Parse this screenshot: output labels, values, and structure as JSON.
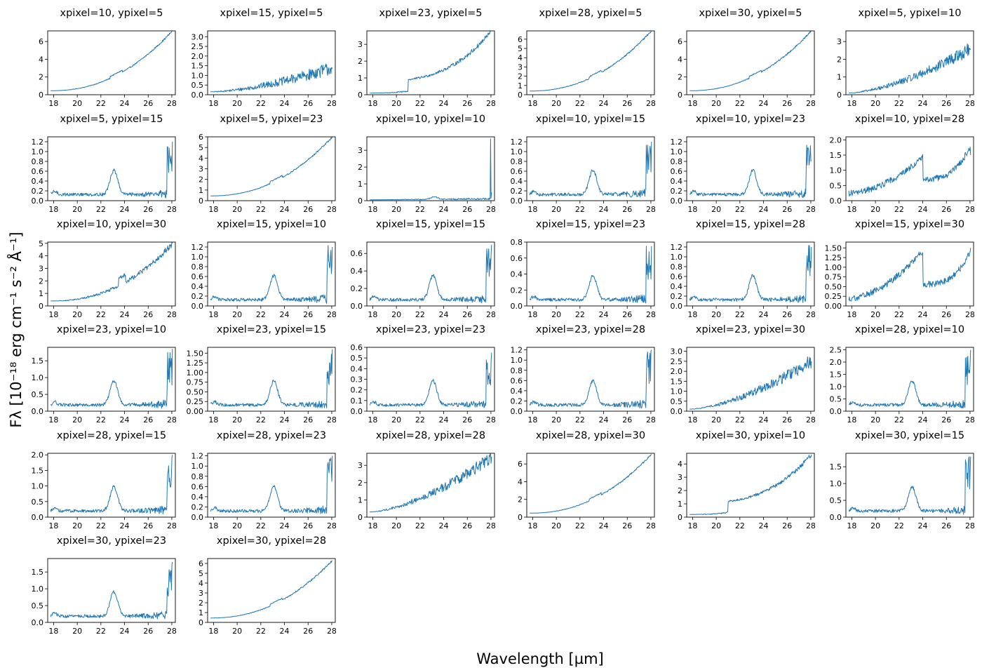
{
  "figure": {
    "xlabel": "Wavelength [µm]",
    "ylabel": "Fλ [10⁻¹⁸ erg cm⁻¹ s⁻² Å⁻¹]",
    "line_color": "#1f77b4"
  },
  "chart_data": [
    {
      "type": "line",
      "title": "xpixel=10, ypixel=5",
      "xlim": [
        17.5,
        28.3
      ],
      "ylim": [
        0,
        7.2
      ],
      "yticks": [
        0,
        2,
        4,
        6
      ],
      "ytick_labels": [
        "0",
        "2",
        "4",
        "6"
      ],
      "xticks": [
        18,
        20,
        22,
        24,
        26,
        28
      ],
      "shape": "rising",
      "end_value": 7.2,
      "start_value": 0.45
    },
    {
      "type": "line",
      "title": "xpixel=15, ypixel=5",
      "xlim": [
        17.5,
        28.3
      ],
      "ylim": [
        0,
        3.3
      ],
      "yticks": [
        0,
        0.5,
        1,
        1.5,
        2,
        2.5,
        3
      ],
      "ytick_labels": [
        "0.0",
        "0.5",
        "1.0",
        "1.5",
        "2.0",
        "2.5",
        "3.0"
      ],
      "xticks": [
        18,
        20,
        22,
        24,
        26,
        28
      ],
      "shape": "noisy-rising",
      "end_value": 1.4,
      "start_value": 0.15
    },
    {
      "type": "line",
      "title": "xpixel=23, ypixel=5",
      "xlim": [
        17.5,
        28.3
      ],
      "ylim": [
        0,
        3.8
      ],
      "yticks": [
        0,
        1,
        2,
        3
      ],
      "ytick_labels": [
        "0",
        "1",
        "2",
        "3"
      ],
      "xticks": [
        18,
        20,
        22,
        24,
        26,
        28
      ],
      "shape": "step-rising",
      "end_value": 3.8,
      "start_value": 0.1
    },
    {
      "type": "line",
      "title": "xpixel=28, ypixel=5",
      "xlim": [
        17.5,
        28.3
      ],
      "ylim": [
        0,
        6.9
      ],
      "yticks": [
        0,
        1,
        2,
        3,
        4,
        5,
        6
      ],
      "ytick_labels": [
        "0",
        "1",
        "2",
        "3",
        "4",
        "5",
        "6"
      ],
      "xticks": [
        18,
        20,
        22,
        24,
        26,
        28
      ],
      "shape": "rising",
      "end_value": 6.9,
      "start_value": 0.4
    },
    {
      "type": "line",
      "title": "xpixel=30, ypixel=5",
      "xlim": [
        17.5,
        28.3
      ],
      "ylim": [
        0,
        7.2
      ],
      "yticks": [
        0,
        2,
        4,
        6
      ],
      "ytick_labels": [
        "0",
        "2",
        "4",
        "6"
      ],
      "xticks": [
        18,
        20,
        22,
        24,
        26,
        28
      ],
      "shape": "rising",
      "end_value": 7.2,
      "start_value": 0.45
    },
    {
      "type": "line",
      "title": "xpixel=5, ypixel=10",
      "xlim": [
        17.5,
        28.3
      ],
      "ylim": [
        0,
        3.6
      ],
      "yticks": [
        0,
        1,
        2,
        3
      ],
      "ytick_labels": [
        "0",
        "1",
        "2",
        "3"
      ],
      "xticks": [
        18,
        20,
        22,
        24,
        26,
        28
      ],
      "shape": "noisy-rising",
      "end_value": 2.6,
      "start_value": 0.1
    },
    {
      "type": "line",
      "title": "xpixel=5, ypixel=15",
      "xlim": [
        17.5,
        28.3
      ],
      "ylim": [
        0,
        1.3
      ],
      "yticks": [
        0,
        0.2,
        0.4,
        0.6,
        0.8,
        1,
        1.2
      ],
      "ytick_labels": [
        "0.0",
        "0.2",
        "0.4",
        "0.6",
        "0.8",
        "1.0",
        "1.2"
      ],
      "xticks": [
        18,
        20,
        22,
        24,
        26,
        28
      ],
      "shape": "bump-noisy",
      "end_value": 1.2,
      "start_value": 0.1
    },
    {
      "type": "line",
      "title": "xpixel=5, ypixel=23",
      "xlim": [
        17.5,
        28.3
      ],
      "ylim": [
        0,
        6
      ],
      "yticks": [
        0,
        1,
        2,
        3,
        4,
        5,
        6
      ],
      "ytick_labels": [
        "0",
        "1",
        "2",
        "3",
        "4",
        "5",
        "6"
      ],
      "xticks": [
        18,
        20,
        22,
        24,
        26,
        28
      ],
      "shape": "rising",
      "end_value": 6,
      "start_value": 0.45
    },
    {
      "type": "line",
      "title": "xpixel=10, ypixel=10",
      "xlim": [
        17.5,
        28.3
      ],
      "ylim": [
        0,
        3.8
      ],
      "yticks": [
        0,
        1,
        2,
        3
      ],
      "ytick_labels": [
        "0",
        "1",
        "2",
        "3"
      ],
      "xticks": [
        18,
        20,
        22,
        24,
        26,
        28
      ],
      "shape": "flat-spike",
      "end_value": 0.5,
      "start_value": 0.05
    },
    {
      "type": "line",
      "title": "xpixel=10, ypixel=15",
      "xlim": [
        17.5,
        28.3
      ],
      "ylim": [
        0,
        1.3
      ],
      "yticks": [
        0,
        0.2,
        0.4,
        0.6,
        0.8,
        1,
        1.2
      ],
      "ytick_labels": [
        "0.0",
        "0.2",
        "0.4",
        "0.6",
        "0.8",
        "1.0",
        "1.2"
      ],
      "xticks": [
        18,
        20,
        22,
        24,
        26,
        28
      ],
      "shape": "bump-noisy",
      "end_value": 1.2,
      "start_value": 0.1
    },
    {
      "type": "line",
      "title": "xpixel=10, ypixel=23",
      "xlim": [
        17.5,
        28.3
      ],
      "ylim": [
        0,
        1.3
      ],
      "yticks": [
        0,
        0.2,
        0.4,
        0.6,
        0.8,
        1,
        1.2
      ],
      "ytick_labels": [
        "0.0",
        "0.2",
        "0.4",
        "0.6",
        "0.8",
        "1.0",
        "1.2"
      ],
      "xticks": [
        18,
        20,
        22,
        24,
        26,
        28
      ],
      "shape": "bump-noisy",
      "end_value": 0.8,
      "start_value": 0.1
    },
    {
      "type": "line",
      "title": "xpixel=10, ypixel=28",
      "xlim": [
        17.5,
        28.3
      ],
      "ylim": [
        0,
        2.1
      ],
      "yticks": [
        0,
        0.5,
        1,
        1.5,
        2
      ],
      "ytick_labels": [
        "0.0",
        "0.5",
        "1.0",
        "1.5",
        "2.0"
      ],
      "xticks": [
        18,
        20,
        22,
        24,
        26,
        28
      ],
      "shape": "hump-drop",
      "end_value": 1.5,
      "start_value": 0.25
    },
    {
      "type": "line",
      "title": "xpixel=10, ypixel=30",
      "xlim": [
        17.5,
        28.3
      ],
      "ylim": [
        0,
        5.1
      ],
      "yticks": [
        0,
        1,
        2,
        3,
        4,
        5
      ],
      "ytick_labels": [
        "0",
        "1",
        "2",
        "3",
        "4",
        "5"
      ],
      "xticks": [
        18,
        20,
        22,
        24,
        26,
        28
      ],
      "shape": "rising-drop",
      "end_value": 5,
      "start_value": 0.4
    },
    {
      "type": "line",
      "title": "xpixel=15, ypixel=10",
      "xlim": [
        17.5,
        28.3
      ],
      "ylim": [
        0,
        1.3
      ],
      "yticks": [
        0,
        0.2,
        0.4,
        0.6,
        0.8,
        1,
        1.2
      ],
      "ytick_labels": [
        "0.0",
        "0.2",
        "0.4",
        "0.6",
        "0.8",
        "1.0",
        "1.2"
      ],
      "xticks": [
        18,
        20,
        22,
        24,
        26,
        28
      ],
      "shape": "bump-noisy",
      "end_value": 1.2,
      "start_value": 0.1
    },
    {
      "type": "line",
      "title": "xpixel=15, ypixel=15",
      "xlim": [
        17.5,
        28.3
      ],
      "ylim": [
        0,
        0.73
      ],
      "yticks": [
        0,
        0.2,
        0.4,
        0.6
      ],
      "ytick_labels": [
        "0.0",
        "0.2",
        "0.4",
        "0.6"
      ],
      "xticks": [
        18,
        20,
        22,
        24,
        26,
        28
      ],
      "shape": "bump-noisy",
      "end_value": 0.7,
      "start_value": 0.1
    },
    {
      "type": "line",
      "title": "xpixel=15, ypixel=23",
      "xlim": [
        17.5,
        28.3
      ],
      "ylim": [
        0,
        0.8
      ],
      "yticks": [
        0,
        0.2,
        0.4,
        0.6,
        0.8
      ],
      "ytick_labels": [
        "0.0",
        "0.2",
        "0.4",
        "0.6",
        "0.8"
      ],
      "xticks": [
        18,
        20,
        22,
        24,
        26,
        28
      ],
      "shape": "bump-noisy",
      "end_value": 0.75,
      "start_value": 0.1
    },
    {
      "type": "line",
      "title": "xpixel=15, ypixel=28",
      "xlim": [
        17.5,
        28.3
      ],
      "ylim": [
        0,
        1.3
      ],
      "yticks": [
        0,
        0.2,
        0.4,
        0.6,
        0.8,
        1,
        1.2
      ],
      "ytick_labels": [
        "0.0",
        "0.2",
        "0.4",
        "0.6",
        "0.8",
        "1.0",
        "1.2"
      ],
      "xticks": [
        18,
        20,
        22,
        24,
        26,
        28
      ],
      "shape": "bump-noisy",
      "end_value": 1.2,
      "start_value": 0.1
    },
    {
      "type": "line",
      "title": "xpixel=15, ypixel=30",
      "xlim": [
        17.5,
        28.3
      ],
      "ylim": [
        0,
        1.65
      ],
      "yticks": [
        0,
        0.25,
        0.5,
        0.75,
        1,
        1.25,
        1.5
      ],
      "ytick_labels": [
        "0.00",
        "0.25",
        "0.50",
        "0.75",
        "1.00",
        "1.25",
        "1.50"
      ],
      "xticks": [
        18,
        20,
        22,
        24,
        26,
        28
      ],
      "shape": "hump-drop",
      "end_value": 1.5,
      "start_value": 0.2
    },
    {
      "type": "line",
      "title": "xpixel=23, ypixel=10",
      "xlim": [
        17.5,
        28.3
      ],
      "ylim": [
        0,
        1.9
      ],
      "yticks": [
        0,
        0.5,
        1,
        1.5
      ],
      "ytick_labels": [
        "0.0",
        "0.5",
        "1.0",
        "1.5"
      ],
      "xticks": [
        18,
        20,
        22,
        24,
        26,
        28
      ],
      "shape": "bump-noisy",
      "end_value": 1.85,
      "start_value": 0.1
    },
    {
      "type": "line",
      "title": "xpixel=23, ypixel=15",
      "xlim": [
        17.5,
        28.3
      ],
      "ylim": [
        0,
        1.65
      ],
      "yticks": [
        0,
        0.25,
        0.5,
        0.75,
        1,
        1.25,
        1.5
      ],
      "ytick_labels": [
        "0.00",
        "0.25",
        "0.50",
        "0.75",
        "1.00",
        "1.25",
        "1.50"
      ],
      "xticks": [
        18,
        20,
        22,
        24,
        26,
        28
      ],
      "shape": "bump-noisy",
      "end_value": 1.6,
      "start_value": 0.05
    },
    {
      "type": "line",
      "title": "xpixel=23, ypixel=23",
      "xlim": [
        17.5,
        28.3
      ],
      "ylim": [
        0,
        0.6
      ],
      "yticks": [
        0,
        0.1,
        0.2,
        0.3,
        0.4,
        0.5,
        0.6
      ],
      "ytick_labels": [
        "0.0",
        "0.1",
        "0.2",
        "0.3",
        "0.4",
        "0.5",
        "0.6"
      ],
      "xticks": [
        18,
        20,
        22,
        24,
        26,
        28
      ],
      "shape": "bump-noisy",
      "end_value": 0.55,
      "start_value": 0.05
    },
    {
      "type": "line",
      "title": "xpixel=23, ypixel=28",
      "xlim": [
        17.5,
        28.3
      ],
      "ylim": [
        0,
        1.25
      ],
      "yticks": [
        0,
        0.2,
        0.4,
        0.6,
        0.8,
        1,
        1.2
      ],
      "ytick_labels": [
        "0.0",
        "0.2",
        "0.4",
        "0.6",
        "0.8",
        "1.0",
        "1.2"
      ],
      "xticks": [
        18,
        20,
        22,
        24,
        26,
        28
      ],
      "shape": "bump-noisy",
      "end_value": 1.2,
      "start_value": 0.1
    },
    {
      "type": "line",
      "title": "xpixel=23, ypixel=30",
      "xlim": [
        17.5,
        28.3
      ],
      "ylim": [
        0,
        3.2
      ],
      "yticks": [
        0,
        0.5,
        1,
        1.5,
        2,
        2.5,
        3
      ],
      "ytick_labels": [
        "0.0",
        "0.5",
        "1.0",
        "1.5",
        "2.0",
        "2.5",
        "3.0"
      ],
      "xticks": [
        18,
        20,
        22,
        24,
        26,
        28
      ],
      "shape": "noisy-rising",
      "end_value": 2.5,
      "start_value": 0.1
    },
    {
      "type": "line",
      "title": "xpixel=28, ypixel=10",
      "xlim": [
        17.5,
        28.3
      ],
      "ylim": [
        0,
        2.6
      ],
      "yticks": [
        0,
        0.5,
        1,
        1.5,
        2,
        2.5
      ],
      "ytick_labels": [
        "0.0",
        "0.5",
        "1.0",
        "1.5",
        "2.0",
        "2.5"
      ],
      "xticks": [
        18,
        20,
        22,
        24,
        26,
        28
      ],
      "shape": "bump-noisy",
      "end_value": 2.5,
      "start_value": 0.1
    },
    {
      "type": "line",
      "title": "xpixel=28, ypixel=15",
      "xlim": [
        17.5,
        28.3
      ],
      "ylim": [
        0,
        2.05
      ],
      "yticks": [
        0,
        0.5,
        1,
        1.5,
        2
      ],
      "ytick_labels": [
        "0.0",
        "0.5",
        "1.0",
        "1.5",
        "2.0"
      ],
      "xticks": [
        18,
        20,
        22,
        24,
        26,
        28
      ],
      "shape": "bump-noisy",
      "end_value": 2,
      "start_value": 0.1
    },
    {
      "type": "line",
      "title": "xpixel=28, ypixel=23",
      "xlim": [
        17.5,
        28.3
      ],
      "ylim": [
        0,
        1.25
      ],
      "yticks": [
        0,
        0.2,
        0.4,
        0.6,
        0.8,
        1,
        1.2
      ],
      "ytick_labels": [
        "0.0",
        "0.2",
        "0.4",
        "0.6",
        "0.8",
        "1.0",
        "1.2"
      ],
      "xticks": [
        18,
        20,
        22,
        24,
        26,
        28
      ],
      "shape": "bump-noisy",
      "end_value": 1.2,
      "start_value": 0.1
    },
    {
      "type": "line",
      "title": "xpixel=28, ypixel=28",
      "xlim": [
        17.5,
        28.3
      ],
      "ylim": [
        0,
        3.7
      ],
      "yticks": [
        0,
        1,
        2,
        3
      ],
      "ytick_labels": [
        "0",
        "1",
        "2",
        "3"
      ],
      "xticks": [
        18,
        20,
        22,
        24,
        26,
        28
      ],
      "shape": "noisy-rising",
      "end_value": 3.5,
      "start_value": 0.3
    },
    {
      "type": "line",
      "title": "xpixel=28, ypixel=30",
      "xlim": [
        17.5,
        28.3
      ],
      "ylim": [
        0,
        7.2
      ],
      "yticks": [
        0,
        2,
        4,
        6
      ],
      "ytick_labels": [
        "0",
        "2",
        "4",
        "6"
      ],
      "xticks": [
        18,
        20,
        22,
        24,
        26,
        28
      ],
      "shape": "rising",
      "end_value": 7.1,
      "start_value": 0.45
    },
    {
      "type": "line",
      "title": "xpixel=30, ypixel=10",
      "xlim": [
        17.5,
        28.3
      ],
      "ylim": [
        0,
        4.8
      ],
      "yticks": [
        0,
        1,
        2,
        3,
        4
      ],
      "ytick_labels": [
        "0",
        "1",
        "2",
        "3",
        "4"
      ],
      "xticks": [
        18,
        20,
        22,
        24,
        26,
        28
      ],
      "shape": "step-rising",
      "end_value": 4.7,
      "start_value": 0.2
    },
    {
      "type": "line",
      "title": "xpixel=30, ypixel=15",
      "xlim": [
        17.5,
        28.3
      ],
      "ylim": [
        0,
        1.9
      ],
      "yticks": [
        0,
        0.5,
        1,
        1.5
      ],
      "ytick_labels": [
        "0.0",
        "0.5",
        "1.0",
        "1.5"
      ],
      "xticks": [
        18,
        20,
        22,
        24,
        26,
        28
      ],
      "shape": "bump-noisy",
      "end_value": 1.8,
      "start_value": 0.1
    },
    {
      "type": "line",
      "title": "xpixel=30, ypixel=23",
      "xlim": [
        17.5,
        28.3
      ],
      "ylim": [
        0,
        1.9
      ],
      "yticks": [
        0,
        0.5,
        1,
        1.5
      ],
      "ytick_labels": [
        "0.0",
        "0.5",
        "1.0",
        "1.5"
      ],
      "xticks": [
        18,
        20,
        22,
        24,
        26,
        28
      ],
      "shape": "bump-noisy",
      "end_value": 1.8,
      "start_value": 0.1
    },
    {
      "type": "line",
      "title": "xpixel=30, ypixel=28",
      "xlim": [
        17.5,
        28.3
      ],
      "ylim": [
        0,
        6.5
      ],
      "yticks": [
        0,
        1,
        2,
        3,
        4,
        5,
        6
      ],
      "ytick_labels": [
        "0",
        "1",
        "2",
        "3",
        "4",
        "5",
        "6"
      ],
      "xticks": [
        18,
        20,
        22,
        24,
        26,
        28
      ],
      "shape": "rising",
      "end_value": 6.3,
      "start_value": 0.45
    }
  ]
}
